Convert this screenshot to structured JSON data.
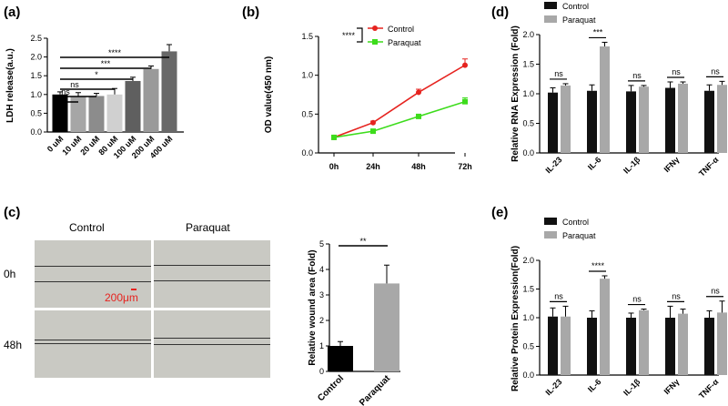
{
  "panels": {
    "a": "(a)",
    "b": "(b)",
    "c": "(c)",
    "d": "(d)",
    "e": "(e)"
  },
  "colors": {
    "control": "#e6231f",
    "paraquat": "#3ddc1c",
    "black": "#111111",
    "grey": "#a8a8a8"
  },
  "panel_c": {
    "col_control": "Control",
    "col_paraquat": "Paraquat",
    "row_0h": "0h",
    "row_48h": "48h",
    "scale_bar": "200μm"
  },
  "chart_data": [
    {
      "id": "a",
      "type": "bar",
      "title": "",
      "xlabel": "",
      "ylabel": "LDH release(a.u.)",
      "ylim": [
        0,
        2.5
      ],
      "yticks": [
        "0.0",
        "0.5",
        "1.0",
        "1.5",
        "2.0",
        "2.5"
      ],
      "categories": [
        "0 uM",
        "10 uM",
        "20 uM",
        "80 uM",
        "100 uM",
        "200 uM",
        "400 uM"
      ],
      "values": [
        1.0,
        0.96,
        0.96,
        1.0,
        1.36,
        1.68,
        2.15
      ],
      "errors": [
        0.07,
        0.09,
        0.07,
        0.16,
        0.1,
        0.08,
        0.18
      ],
      "bar_colors": [
        "#000000",
        "#a6a6a6",
        "#8c8c8c",
        "#d0d0d0",
        "#5f5f5f",
        "#9a9a9a",
        "#686868"
      ],
      "significance": [
        {
          "label": "ns",
          "to": 1
        },
        {
          "label": "ns",
          "to": 2
        },
        {
          "label": "ns",
          "to": 3
        },
        {
          "label": "*",
          "to": 4
        },
        {
          "label": "***",
          "to": 5
        },
        {
          "label": "****",
          "to": 6
        }
      ]
    },
    {
      "id": "b",
      "type": "line",
      "ylabel": "OD value(450 nm)",
      "ylim": [
        0,
        1.5
      ],
      "yticks": [
        "0.0",
        "0.5",
        "1.0",
        "1.5"
      ],
      "x": [
        "0h",
        "24h",
        "48h",
        "72h"
      ],
      "series": [
        {
          "name": "Control",
          "values": [
            0.2,
            0.39,
            0.78,
            1.13
          ],
          "errors": [
            0.02,
            0.02,
            0.04,
            0.08
          ]
        },
        {
          "name": "Paraquat",
          "values": [
            0.2,
            0.28,
            0.47,
            0.66
          ],
          "errors": [
            0.02,
            0.02,
            0.02,
            0.05
          ]
        }
      ],
      "significance": "****"
    },
    {
      "id": "c",
      "type": "bar",
      "ylabel": "Relative wound area (Fold)",
      "ylim": [
        0,
        5
      ],
      "yticks": [
        "0",
        "1",
        "2",
        "3",
        "4",
        "5"
      ],
      "categories": [
        "Control",
        "Paraquat"
      ],
      "values": [
        1.0,
        3.45
      ],
      "errors": [
        0.17,
        0.72
      ],
      "significance": "**"
    },
    {
      "id": "d",
      "type": "bar",
      "ylabel": "Relative RNA Expression (Fold)",
      "ylim": [
        0,
        2.0
      ],
      "yticks": [
        "0.0",
        "0.5",
        "1.0",
        "1.5",
        "2.0"
      ],
      "categories": [
        "IL-23",
        "IL-6",
        "IL-1β",
        "IFNγ",
        "TNF-α"
      ],
      "series": [
        {
          "name": "Control",
          "values": [
            1.02,
            1.05,
            1.04,
            1.1,
            1.05
          ],
          "errors": [
            0.08,
            0.1,
            0.1,
            0.1,
            0.1
          ]
        },
        {
          "name": "Paraquat",
          "values": [
            1.14,
            1.8,
            1.12,
            1.17,
            1.15
          ],
          "errors": [
            0.03,
            0.07,
            0.02,
            0.03,
            0.06
          ]
        }
      ],
      "significance": [
        "ns",
        "***",
        "ns",
        "ns",
        "ns"
      ]
    },
    {
      "id": "e",
      "type": "bar",
      "ylabel": "Relative Protein Expression(Fold)",
      "ylim": [
        0,
        2.0
      ],
      "yticks": [
        "0.0",
        "0.5",
        "1.0",
        "1.5",
        "2.0"
      ],
      "categories": [
        "IL-23",
        "IL-6",
        "IL-1β",
        "IFNγ",
        "TNF-α"
      ],
      "series": [
        {
          "name": "Control",
          "values": [
            1.02,
            1.0,
            1.0,
            1.0,
            1.0
          ],
          "errors": [
            0.15,
            0.12,
            0.08,
            0.2,
            0.12
          ]
        },
        {
          "name": "Paraquat",
          "values": [
            1.02,
            1.68,
            1.13,
            1.07,
            1.09
          ],
          "errors": [
            0.18,
            0.05,
            0.02,
            0.08,
            0.2
          ]
        }
      ],
      "significance": [
        "ns",
        "****",
        "ns",
        "ns",
        "ns"
      ]
    }
  ]
}
